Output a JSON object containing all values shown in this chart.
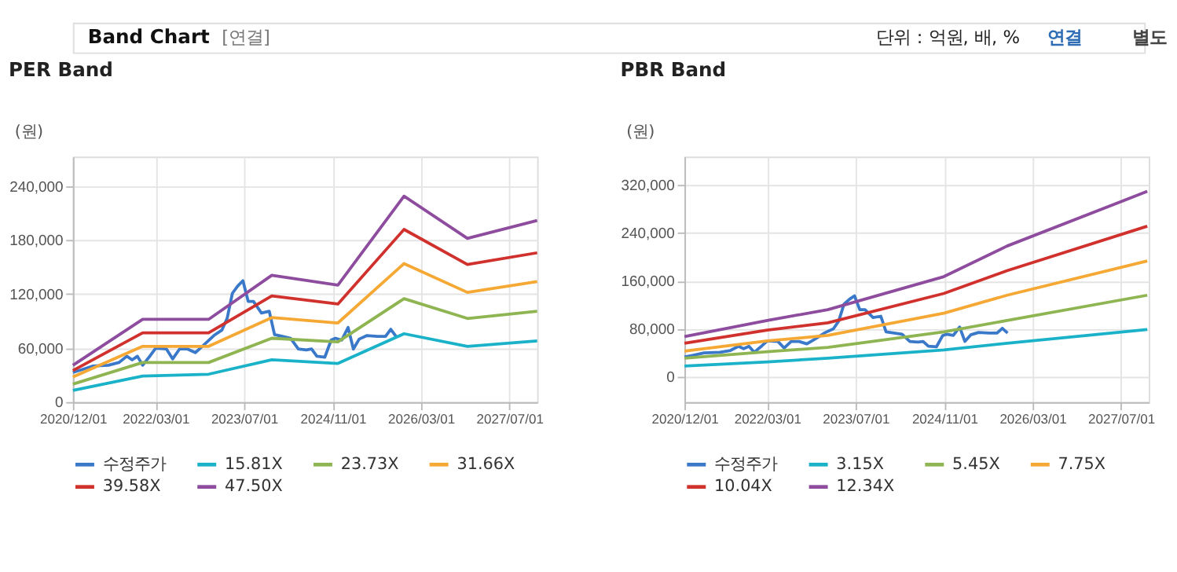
{
  "chart_data": [
    {
      "type": "line",
      "title": "PER Band",
      "ylabel": "(원)",
      "annotations": [
        "Band Chart",
        "[연결]",
        "단위 : 억원, 배, %",
        "연결",
        "별도"
      ],
      "xlim": [
        "2020-12-01",
        "2027-12-01"
      ],
      "xticks": [
        {
          "value": "2020-12-01",
          "label": "2020/12/01"
        },
        {
          "value": "2022-03-01",
          "label": "2022/03/01"
        },
        {
          "value": "2023-07-01",
          "label": "2023/07/01"
        },
        {
          "value": "2024-11-01",
          "label": "2024/11/01"
        },
        {
          "value": "2026-03-01",
          "label": "2026/03/01"
        },
        {
          "value": "2027-07-01",
          "label": "2027/07/01"
        }
      ],
      "ylim": [
        0,
        273000
      ],
      "yticks": [
        0,
        {
          "value": 60000,
          "label": "60,000"
        },
        {
          "value": 120000,
          "label": "120,000"
        },
        {
          "value": 180000,
          "label": "180,000"
        },
        {
          "value": 240000,
          "label": "240,000"
        }
      ],
      "grid": true,
      "legend": "bottom",
      "line_style": "solid",
      "marker": "none",
      "series": [
        {
          "name": "수정주가",
          "color": "#3a78c9",
          "x": [
            "2020-12-01",
            "2021-01-19",
            "2021-03-19",
            "2021-06-14",
            "2021-08-11",
            "2021-09-24",
            "2021-10-23",
            "2021-11-21",
            "2021-12-20",
            "2022-02-01",
            "2022-03-02",
            "2022-04-30",
            "2022-06-03",
            "2022-07-11",
            "2022-08-24",
            "2022-10-06",
            "2022-11-19",
            "2023-01-16",
            "2023-03-01",
            "2023-03-30",
            "2023-04-28",
            "2023-05-27",
            "2023-06-25",
            "2023-07-24",
            "2023-08-22",
            "2023-10-05",
            "2023-11-17",
            "2023-12-16",
            "2024-01-29",
            "2024-03-13",
            "2024-04-25",
            "2024-06-08",
            "2024-07-07",
            "2024-08-05",
            "2024-09-18",
            "2024-10-23",
            "2024-11-15",
            "2024-12-20",
            "2025-01-24",
            "2025-02-22",
            "2025-03-26",
            "2025-05-08",
            "2025-07-05",
            "2025-08-18",
            "2025-09-16",
            "2025-10-15"
          ],
          "values": [
            33000,
            36000,
            40000,
            41000,
            44000,
            51000,
            47000,
            51000,
            41000,
            52000,
            60000,
            59000,
            48000,
            59000,
            59000,
            55000,
            63000,
            74000,
            80000,
            93000,
            121000,
            129000,
            135000,
            112000,
            112000,
            99000,
            101000,
            75000,
            73000,
            71000,
            59000,
            58000,
            59000,
            51000,
            50000,
            69000,
            71000,
            69000,
            83000,
            59000,
            70000,
            74000,
            73000,
            73000,
            81000,
            73000
          ]
        },
        {
          "name": "15.81X",
          "color": "#1ab2c8",
          "x": [
            "2020-12-01",
            "2021-12-20",
            "2022-12-18",
            "2023-12-01",
            "2024-11-29",
            "2025-11-28",
            "2026-11-12",
            "2027-12-01"
          ],
          "values": [
            13000,
            29000,
            31000,
            47000,
            43000,
            76000,
            62000,
            68000
          ]
        },
        {
          "name": "23.73X",
          "color": "#8fb552",
          "x": [
            "2020-12-01",
            "2021-12-20",
            "2022-12-18",
            "2023-12-01",
            "2024-11-29",
            "2025-11-28",
            "2026-11-12",
            "2027-12-01"
          ],
          "values": [
            20000,
            44000,
            44000,
            71000,
            67000,
            115000,
            93000,
            101000
          ]
        },
        {
          "name": "31.66X",
          "color": "#f5a834",
          "x": [
            "2020-12-01",
            "2021-12-20",
            "2022-12-18",
            "2023-12-01",
            "2024-11-29",
            "2025-11-28",
            "2026-11-12",
            "2027-12-01"
          ],
          "values": [
            28000,
            62000,
            62000,
            94000,
            88000,
            154000,
            122000,
            134000
          ]
        },
        {
          "name": "39.58X",
          "color": "#d0312d",
          "x": [
            "2020-12-01",
            "2021-12-20",
            "2022-12-18",
            "2023-12-01",
            "2024-11-29",
            "2025-11-28",
            "2026-11-12",
            "2027-12-01"
          ],
          "values": [
            35000,
            77000,
            77000,
            118000,
            109000,
            192000,
            153000,
            166000
          ]
        },
        {
          "name": "47.50X",
          "color": "#8e4c9e",
          "x": [
            "2020-12-01",
            "2021-12-20",
            "2022-12-18",
            "2023-12-01",
            "2024-11-29",
            "2025-11-28",
            "2026-11-12",
            "2027-12-01"
          ],
          "values": [
            41000,
            92000,
            92000,
            141000,
            130000,
            229000,
            182000,
            202000
          ]
        }
      ]
    },
    {
      "type": "line",
      "title": "PBR Band",
      "ylabel": "(원)",
      "xlim": [
        "2020-12-01",
        "2027-12-01"
      ],
      "xticks": [
        {
          "value": "2020-12-01",
          "label": "2020/12/01"
        },
        {
          "value": "2022-03-01",
          "label": "2022/03/01"
        },
        {
          "value": "2023-07-01",
          "label": "2023/07/01"
        },
        {
          "value": "2024-11-01",
          "label": "2024/11/01"
        },
        {
          "value": "2026-03-01",
          "label": "2026/03/01"
        },
        {
          "value": "2027-07-01",
          "label": "2027/07/01"
        }
      ],
      "ylim": [
        -42000,
        367000
      ],
      "yticks": [
        0,
        {
          "value": 80000,
          "label": "80,000"
        },
        {
          "value": 160000,
          "label": "160,000"
        },
        {
          "value": 240000,
          "label": "240,000"
        },
        {
          "value": 320000,
          "label": "320,000"
        }
      ],
      "grid": true,
      "legend": "bottom",
      "line_style": "solid",
      "marker": "none",
      "series": [
        {
          "name": "수정주가",
          "color": "#3a78c9",
          "x": [
            "2020-12-01",
            "2021-01-19",
            "2021-03-19",
            "2021-06-14",
            "2021-08-11",
            "2021-09-24",
            "2021-10-23",
            "2021-11-21",
            "2021-12-20",
            "2022-02-01",
            "2022-03-02",
            "2022-04-30",
            "2022-06-03",
            "2022-07-11",
            "2022-08-24",
            "2022-10-06",
            "2022-11-19",
            "2023-01-16",
            "2023-03-01",
            "2023-03-30",
            "2023-04-28",
            "2023-05-27",
            "2023-06-25",
            "2023-07-24",
            "2023-08-22",
            "2023-10-05",
            "2023-11-17",
            "2023-12-16",
            "2024-01-29",
            "2024-03-13",
            "2024-04-25",
            "2024-06-08",
            "2024-07-07",
            "2024-08-05",
            "2024-09-18",
            "2024-10-23",
            "2024-11-15",
            "2024-12-20",
            "2025-01-24",
            "2025-02-22",
            "2025-03-26",
            "2025-05-08",
            "2025-07-05",
            "2025-08-18",
            "2025-09-16",
            "2025-10-15"
          ],
          "values": [
            33000,
            36000,
            40000,
            41000,
            44000,
            51000,
            47000,
            51000,
            41000,
            52000,
            60000,
            59000,
            48000,
            59000,
            59000,
            55000,
            63000,
            74000,
            80000,
            93000,
            121000,
            129000,
            135000,
            112000,
            112000,
            99000,
            101000,
            75000,
            73000,
            71000,
            59000,
            58000,
            59000,
            51000,
            50000,
            69000,
            71000,
            69000,
            83000,
            59000,
            70000,
            74000,
            73000,
            73000,
            81000,
            73000
          ]
        },
        {
          "name": "3.15X",
          "color": "#1ab2c8",
          "x": [
            "2020-12-01",
            "2022-03-02",
            "2023-01-29",
            "2024-10-29",
            "2025-10-12",
            "2027-11-23"
          ],
          "values": [
            18000,
            25000,
            31000,
            45000,
            56000,
            79000
          ]
        },
        {
          "name": "5.45X",
          "color": "#8fb552",
          "x": [
            "2020-12-01",
            "2022-03-02",
            "2023-01-29",
            "2024-10-29",
            "2025-10-12",
            "2027-11-23"
          ],
          "values": [
            31000,
            42000,
            49000,
            75000,
            94000,
            136000
          ]
        },
        {
          "name": "7.75X",
          "color": "#f5a834",
          "x": [
            "2020-12-01",
            "2022-03-02",
            "2023-01-29",
            "2024-10-29",
            "2025-10-12",
            "2027-11-23"
          ],
          "values": [
            43000,
            60000,
            69000,
            106000,
            136000,
            193000
          ]
        },
        {
          "name": "10.04X",
          "color": "#d0312d",
          "x": [
            "2020-12-01",
            "2022-03-02",
            "2023-01-29",
            "2024-10-29",
            "2025-10-12",
            "2027-11-23"
          ],
          "values": [
            56000,
            78000,
            90000,
            139000,
            177000,
            251000
          ]
        },
        {
          "name": "12.34X",
          "color": "#8e4c9e",
          "x": [
            "2020-12-01",
            "2022-03-02",
            "2023-01-29",
            "2024-10-29",
            "2025-10-12",
            "2027-11-23"
          ],
          "values": [
            67000,
            94000,
            112000,
            167000,
            218000,
            309000
          ]
        }
      ]
    }
  ]
}
